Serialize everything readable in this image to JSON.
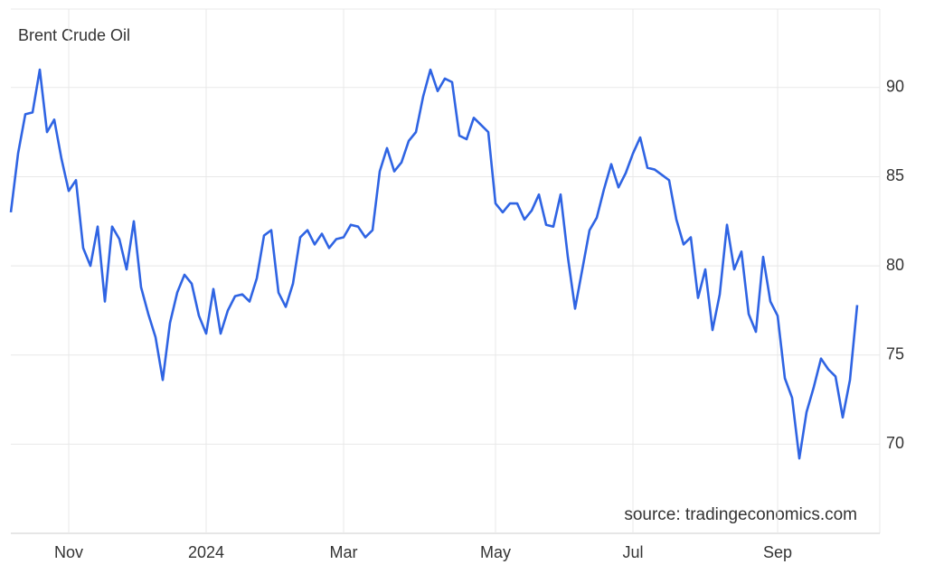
{
  "chart_data": {
    "type": "line",
    "title": "Brent Crude Oil",
    "source": "source: tradingeconomics.com",
    "categories": [
      null,
      null,
      null,
      null,
      null,
      null,
      null,
      null,
      "Nov",
      null,
      null,
      null,
      null,
      null,
      null,
      null,
      null,
      null,
      null,
      null,
      null,
      null,
      null,
      null,
      null,
      null,
      null,
      "2024",
      null,
      null,
      null,
      null,
      null,
      null,
      null,
      null,
      null,
      null,
      null,
      null,
      null,
      null,
      null,
      null,
      null,
      null,
      "Mar",
      null,
      null,
      null,
      null,
      null,
      null,
      null,
      null,
      null,
      null,
      null,
      null,
      null,
      null,
      null,
      null,
      null,
      null,
      null,
      null,
      "May",
      null,
      null,
      null,
      null,
      null,
      null,
      null,
      null,
      null,
      null,
      null,
      null,
      null,
      null,
      null,
      null,
      null,
      null,
      "Jul",
      null,
      null,
      null,
      null,
      null,
      null,
      null,
      null,
      null,
      null,
      null,
      null,
      null,
      null,
      null,
      null,
      null,
      null,
      null,
      "Sep",
      null,
      null,
      null,
      null,
      null,
      null,
      null,
      null,
      null,
      null,
      null
    ],
    "series": [
      {
        "name": "Brent Crude Oil",
        "color": "#2f64e3",
        "values": [
          83,
          86.3,
          88.5,
          88.6,
          91,
          87.5,
          88.2,
          86,
          84.2,
          84.8,
          81,
          80,
          82.2,
          78,
          82.2,
          81.5,
          79.8,
          82.5,
          78.8,
          77.3,
          76,
          73.6,
          76.8,
          78.5,
          79.5,
          79,
          77.2,
          76.2,
          78.7,
          76.2,
          77.5,
          78.3,
          78.4,
          78,
          79.3,
          81.7,
          82,
          78.5,
          77.7,
          79,
          81.6,
          82,
          81.2,
          81.8,
          81,
          81.5,
          81.6,
          82.3,
          82.2,
          81.6,
          82,
          85.3,
          86.6,
          85.3,
          85.8,
          87,
          87.5,
          89.5,
          91,
          89.8,
          90.5,
          90.3,
          87.3,
          87.1,
          88.3,
          87.9,
          87.5,
          83.5,
          83,
          83.5,
          83.5,
          82.6,
          83.1,
          84,
          82.3,
          82.2,
          84,
          80.5,
          77.6,
          79.8,
          82,
          82.7,
          84.3,
          85.7,
          84.4,
          85.2,
          86.3,
          87.2,
          85.5,
          85.4,
          85.1,
          84.8,
          82.6,
          81.2,
          81.6,
          78.2,
          79.8,
          76.4,
          78.4,
          82.3,
          79.8,
          80.8,
          77.3,
          76.3,
          80.5,
          78,
          77.2,
          73.7,
          72.6,
          69.2,
          71.8,
          73.2,
          74.8,
          74.2,
          73.8,
          71.5,
          73.6,
          77.8
        ]
      }
    ],
    "ylim": [
      65,
      94.4
    ],
    "yticks": [
      70,
      75,
      80,
      85,
      90
    ],
    "grid": true
  }
}
